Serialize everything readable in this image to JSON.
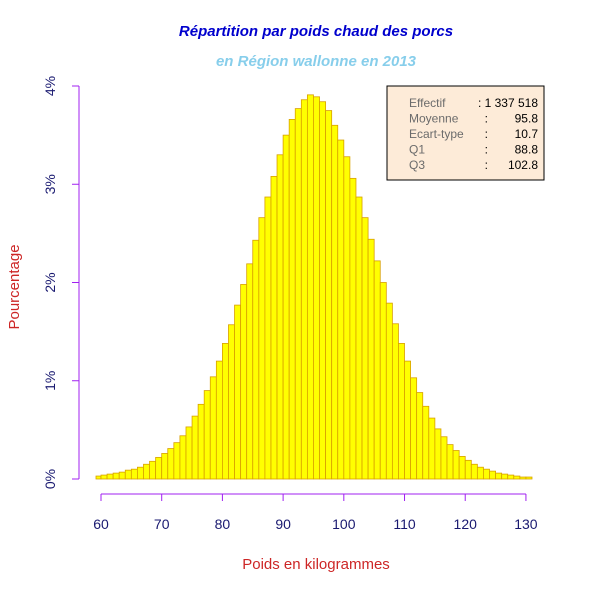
{
  "chart_data": {
    "type": "bar",
    "title": "Répartition par poids chaud des porcs",
    "subtitle": "en Région wallonne en 2013",
    "xlabel": "Poids en kilogrammes",
    "ylabel": "Pourcentage",
    "xlim": [
      60,
      131
    ],
    "ylim": [
      0,
      4
    ],
    "x_ticks": [
      "60",
      "70",
      "80",
      "90",
      "100",
      "110",
      "120",
      "130"
    ],
    "x_tick_values": [
      60,
      70,
      80,
      90,
      100,
      110,
      120,
      130
    ],
    "y_ticks": [
      "0%",
      "1%",
      "2%",
      "3%",
      "4%"
    ],
    "y_tick_values": [
      0,
      1,
      2,
      3,
      4
    ],
    "bin_width": 1,
    "bins_start": [
      59,
      60,
      61,
      62,
      63,
      64,
      65,
      66,
      67,
      68,
      69,
      70,
      71,
      72,
      73,
      74,
      75,
      76,
      77,
      78,
      79,
      80,
      81,
      82,
      83,
      84,
      85,
      86,
      87,
      88,
      89,
      90,
      91,
      92,
      93,
      94,
      95,
      96,
      97,
      98,
      99,
      100,
      101,
      102,
      103,
      104,
      105,
      106,
      107,
      108,
      109,
      110,
      111,
      112,
      113,
      114,
      115,
      116,
      117,
      118,
      119,
      120,
      121,
      122,
      123,
      124,
      125,
      126,
      127,
      128,
      129,
      130
    ],
    "values": [
      0.03,
      0.04,
      0.05,
      0.06,
      0.07,
      0.09,
      0.1,
      0.12,
      0.15,
      0.18,
      0.22,
      0.26,
      0.31,
      0.37,
      0.44,
      0.53,
      0.64,
      0.76,
      0.9,
      1.04,
      1.2,
      1.38,
      1.57,
      1.77,
      1.98,
      2.19,
      2.43,
      2.66,
      2.87,
      3.08,
      3.3,
      3.5,
      3.66,
      3.77,
      3.86,
      3.91,
      3.89,
      3.84,
      3.75,
      3.6,
      3.45,
      3.28,
      3.06,
      2.87,
      2.66,
      2.44,
      2.22,
      2.0,
      1.79,
      1.58,
      1.38,
      1.2,
      1.03,
      0.88,
      0.74,
      0.62,
      0.51,
      0.43,
      0.35,
      0.29,
      0.23,
      0.19,
      0.15,
      0.12,
      0.1,
      0.08,
      0.06,
      0.05,
      0.04,
      0.03,
      0.02,
      0.02
    ],
    "bar_fill": "#ffff00",
    "bar_stroke": "#d8a000",
    "axis_color": "#a020f0",
    "colors": {
      "title": "#0000cd",
      "subtitle": "#87ceeb",
      "xlabel": "#cd2626",
      "ylabel": "#cd2626",
      "ticks": "#191970",
      "stats_box_bg": "#fdebd8",
      "stats_text": "#6b6b6b"
    },
    "stats": [
      {
        "label": "Effectif",
        "value": ": 1 337 518"
      },
      {
        "label": "Moyenne",
        "value": ":        95.8"
      },
      {
        "label": "Ecart-type",
        "value": ":        10.7"
      },
      {
        "label": "Q1",
        "value": ":        88.8"
      },
      {
        "label": "Q3",
        "value": ":      102.8"
      }
    ]
  }
}
